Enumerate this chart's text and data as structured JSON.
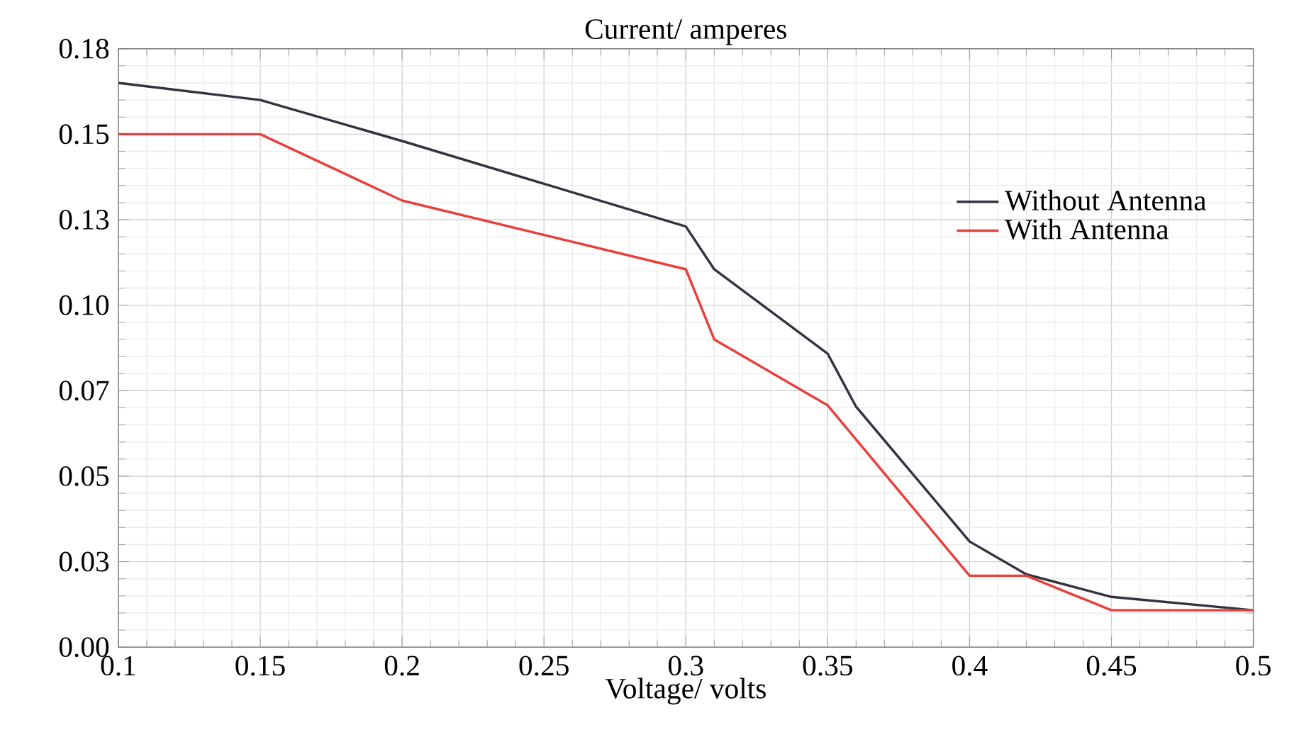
{
  "chart_data": {
    "type": "line",
    "ylabel": "Current/ amperes",
    "xlabel": "Voltage/ volts",
    "xlim": [
      0.1,
      0.5
    ],
    "xticks": [
      0.1,
      0.15,
      0.2,
      0.25,
      0.3,
      0.35,
      0.4,
      0.45,
      0.5
    ],
    "ylim": [
      0,
      0.175
    ],
    "yticks": [
      {
        "value": 0,
        "label": "0.00"
      },
      {
        "value": 0.025,
        "label": "0.03"
      },
      {
        "value": 0.05,
        "label": "0.05"
      },
      {
        "value": 0.075,
        "label": "0.07"
      },
      {
        "value": 0.1,
        "label": "0.10"
      },
      {
        "value": 0.125,
        "label": "0.13"
      },
      {
        "value": 0.15,
        "label": "0.15"
      },
      {
        "value": 0.175,
        "label": "0.18"
      }
    ],
    "grid": true,
    "legend": "right",
    "series": [
      {
        "name": "Without Antenna",
        "color": "#333340",
        "x": [
          0.1,
          0.15,
          0.2,
          0.3,
          0.31,
          0.35,
          0.36,
          0.4,
          0.42,
          0.45,
          0.5
        ],
        "values": [
          0.165,
          0.16,
          0.148,
          0.123,
          0.1105,
          0.0858,
          0.0703,
          0.0309,
          0.0213,
          0.0147,
          0.0108
        ]
      },
      {
        "name": "With Antenna",
        "color": "#e8403c",
        "x": [
          0.1,
          0.15,
          0.2,
          0.3,
          0.31,
          0.35,
          0.4,
          0.42,
          0.45,
          0.5
        ],
        "values": [
          0.15,
          0.15,
          0.1306,
          0.1105,
          0.09,
          0.0707,
          0.0209,
          0.0209,
          0.0108,
          0.0108
        ]
      }
    ]
  }
}
